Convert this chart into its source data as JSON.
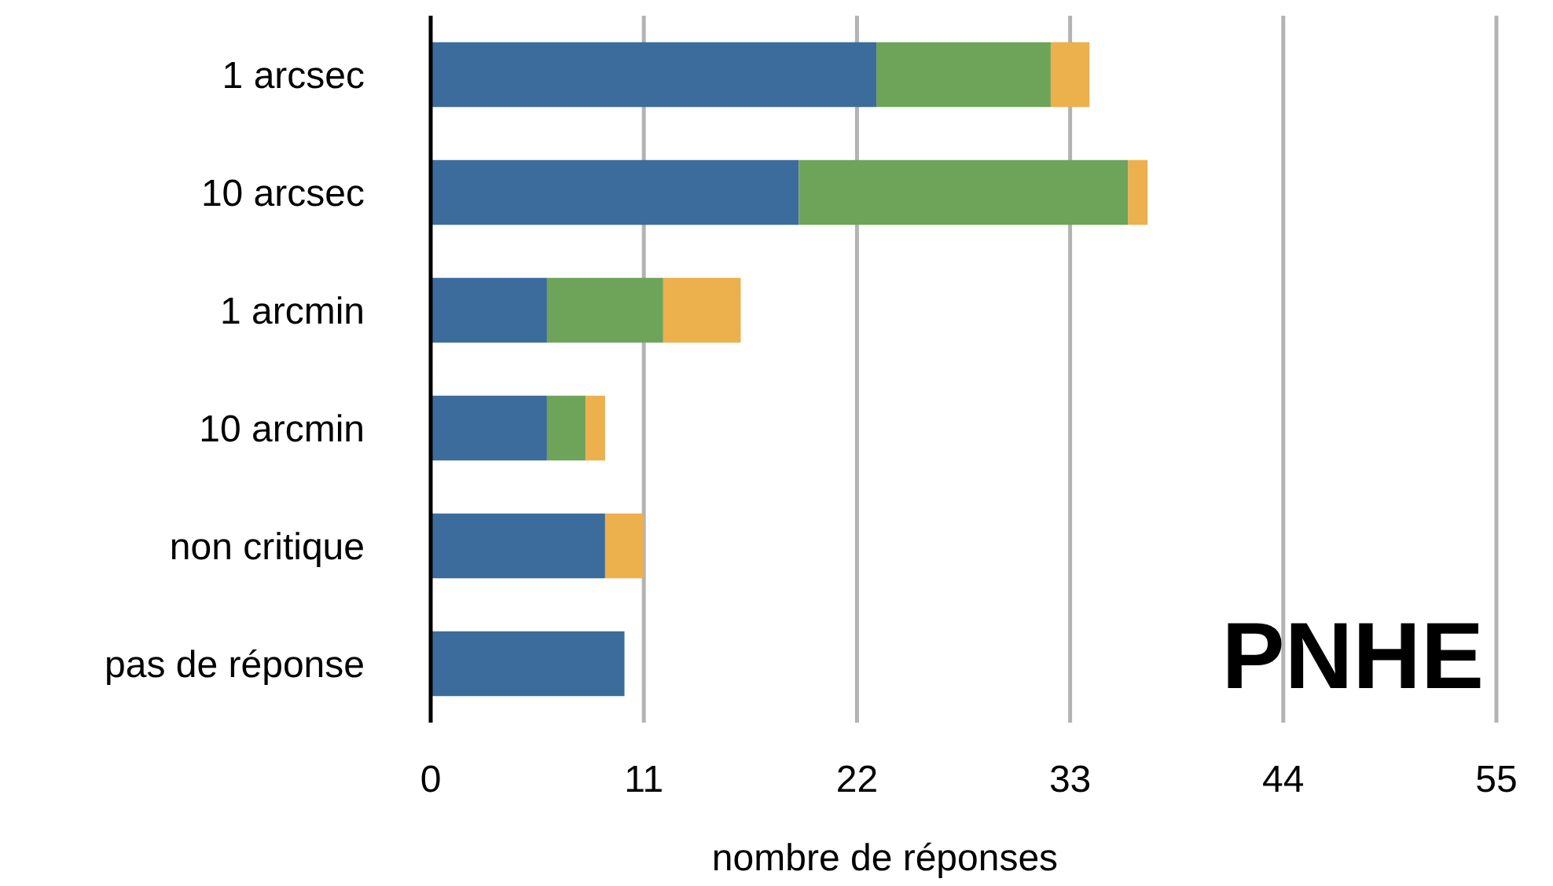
{
  "chart_data": {
    "type": "bar",
    "orientation": "horizontal",
    "stacked": true,
    "xlabel": "nombre de réponses",
    "categories": [
      "1 arcsec",
      "10 arcsec",
      "1 arcmin",
      "10 arcmin",
      "non critique",
      "pas de réponse"
    ],
    "series": [
      {
        "color": "#3c6c9c",
        "values": [
          23,
          19,
          6,
          6,
          9,
          10
        ]
      },
      {
        "color": "#6ea45a",
        "values": [
          9,
          17,
          6,
          2,
          0,
          0
        ]
      },
      {
        "color": "#ecb04c",
        "values": [
          2,
          1,
          4,
          1,
          2,
          0
        ]
      }
    ],
    "xlim": [
      0,
      55
    ],
    "xticks": [
      0,
      11,
      22,
      33,
      44,
      55
    ],
    "grid": "x",
    "annotations": [
      {
        "text": "PNHE"
      }
    ]
  }
}
